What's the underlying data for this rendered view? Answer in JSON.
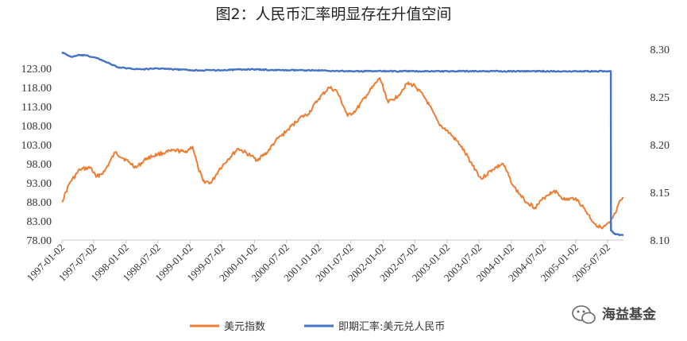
{
  "chart_data": {
    "type": "line",
    "title": "图2：人民币汇率明显存在升值空间",
    "x_ticks": [
      "1997-01-02",
      "1997-07-02",
      "1998-01-02",
      "1998-07-02",
      "1999-01-02",
      "1999-07-02",
      "2000-01-02",
      "2000-07-02",
      "2001-01-02",
      "2001-07-02",
      "2002-01-02",
      "2002-07-02",
      "2003-01-02",
      "2003-07-02",
      "2004-01-02",
      "2004-07-02",
      "2005-01-02",
      "2005-07-02"
    ],
    "xlim": [
      "1997-01-02",
      "2005-09-30"
    ],
    "y_left": {
      "ticks": [
        "78.00",
        "83.00",
        "88.00",
        "93.00",
        "98.00",
        "103.00",
        "108.00",
        "113.00",
        "118.00",
        "123.00"
      ],
      "lim": [
        78,
        128
      ]
    },
    "y_right": {
      "ticks": [
        "8.10",
        "8.15",
        "8.20",
        "8.25",
        "8.30"
      ],
      "lim": [
        8.1,
        8.3
      ]
    },
    "series": [
      {
        "name": "美元指数",
        "axis": "left",
        "color": "#ED7D31",
        "points": [
          [
            "1997-01-02",
            88.0
          ],
          [
            "1997-02-15",
            93.0
          ],
          [
            "1997-04-15",
            96.5
          ],
          [
            "1997-06-15",
            97.0
          ],
          [
            "1997-07-15",
            94.5
          ],
          [
            "1997-09-01",
            96.0
          ],
          [
            "1997-11-01",
            101.0
          ],
          [
            "1998-01-15",
            98.5
          ],
          [
            "1998-03-01",
            97.0
          ],
          [
            "1998-05-01",
            99.5
          ],
          [
            "1998-07-01",
            100.5
          ],
          [
            "1998-08-15",
            101.0
          ],
          [
            "1998-10-15",
            101.5
          ],
          [
            "1998-12-01",
            101.0
          ],
          [
            "1999-01-15",
            102.5
          ],
          [
            "1999-02-15",
            97.0
          ],
          [
            "1999-03-15",
            93.5
          ],
          [
            "1999-05-01",
            93.0
          ],
          [
            "1999-06-15",
            96.5
          ],
          [
            "1999-08-01",
            99.0
          ],
          [
            "1999-10-01",
            102.0
          ],
          [
            "1999-12-15",
            100.0
          ],
          [
            "2000-01-15",
            99.0
          ],
          [
            "2000-03-15",
            101.0
          ],
          [
            "2000-05-01",
            104.0
          ],
          [
            "2000-07-01",
            106.5
          ],
          [
            "2000-09-15",
            110.0
          ],
          [
            "2000-11-01",
            111.0
          ],
          [
            "2001-01-01",
            115.0
          ],
          [
            "2001-03-01",
            118.0
          ],
          [
            "2001-04-15",
            117.0
          ],
          [
            "2001-06-15",
            110.5
          ],
          [
            "2001-08-01",
            112.0
          ],
          [
            "2001-10-01",
            116.0
          ],
          [
            "2001-12-15",
            120.5
          ],
          [
            "2002-02-01",
            114.0
          ],
          [
            "2002-04-01",
            116.0
          ],
          [
            "2002-05-15",
            119.0
          ],
          [
            "2002-07-01",
            118.5
          ],
          [
            "2002-09-01",
            115.0
          ],
          [
            "2002-11-15",
            108.5
          ],
          [
            "2003-01-15",
            106.0
          ],
          [
            "2003-03-15",
            103.0
          ],
          [
            "2003-05-15",
            98.5
          ],
          [
            "2003-07-15",
            94.0
          ],
          [
            "2003-09-15",
            96.5
          ],
          [
            "2003-11-15",
            98.0
          ],
          [
            "2004-01-15",
            92.0
          ],
          [
            "2004-03-15",
            88.5
          ],
          [
            "2004-05-15",
            86.5
          ],
          [
            "2004-07-15",
            89.5
          ],
          [
            "2004-09-01",
            91.0
          ],
          [
            "2004-11-01",
            88.5
          ],
          [
            "2005-01-01",
            89.0
          ],
          [
            "2005-02-15",
            86.5
          ],
          [
            "2005-04-15",
            82.5
          ],
          [
            "2005-06-01",
            81.0
          ],
          [
            "2005-07-15",
            82.5
          ],
          [
            "2005-08-15",
            85.0
          ],
          [
            "2005-09-15",
            88.5
          ],
          [
            "2005-09-30",
            89.0
          ]
        ]
      },
      {
        "name": "即期汇率:美元兑人民币",
        "axis": "right",
        "color": "#4472C4",
        "points": [
          [
            "1997-01-02",
            8.297
          ],
          [
            "1997-02-01",
            8.294
          ],
          [
            "1997-03-01",
            8.292
          ],
          [
            "1997-04-15",
            8.294
          ],
          [
            "1997-06-01",
            8.293
          ],
          [
            "1997-08-01",
            8.29
          ],
          [
            "1997-10-01",
            8.285
          ],
          [
            "1997-11-15",
            8.281
          ],
          [
            "1998-01-15",
            8.28
          ],
          [
            "1998-04-01",
            8.279
          ],
          [
            "1998-07-01",
            8.28
          ],
          [
            "1998-10-01",
            8.279
          ],
          [
            "1999-01-15",
            8.278
          ],
          [
            "1999-06-01",
            8.278
          ],
          [
            "1999-12-01",
            8.279
          ],
          [
            "2000-06-01",
            8.278
          ],
          [
            "2000-12-01",
            8.278
          ],
          [
            "2001-06-01",
            8.277
          ],
          [
            "2002-01-01",
            8.277
          ],
          [
            "2003-01-01",
            8.277
          ],
          [
            "2004-01-01",
            8.277
          ],
          [
            "2005-01-01",
            8.277
          ],
          [
            "2005-07-20",
            8.277
          ],
          [
            "2005-07-21",
            8.11
          ],
          [
            "2005-08-15",
            8.106
          ],
          [
            "2005-09-30",
            8.105
          ]
        ]
      }
    ],
    "legend_position": "bottom",
    "grid": false
  },
  "watermark": {
    "text": "海益基金",
    "icon": "wechat-logo-icon"
  }
}
